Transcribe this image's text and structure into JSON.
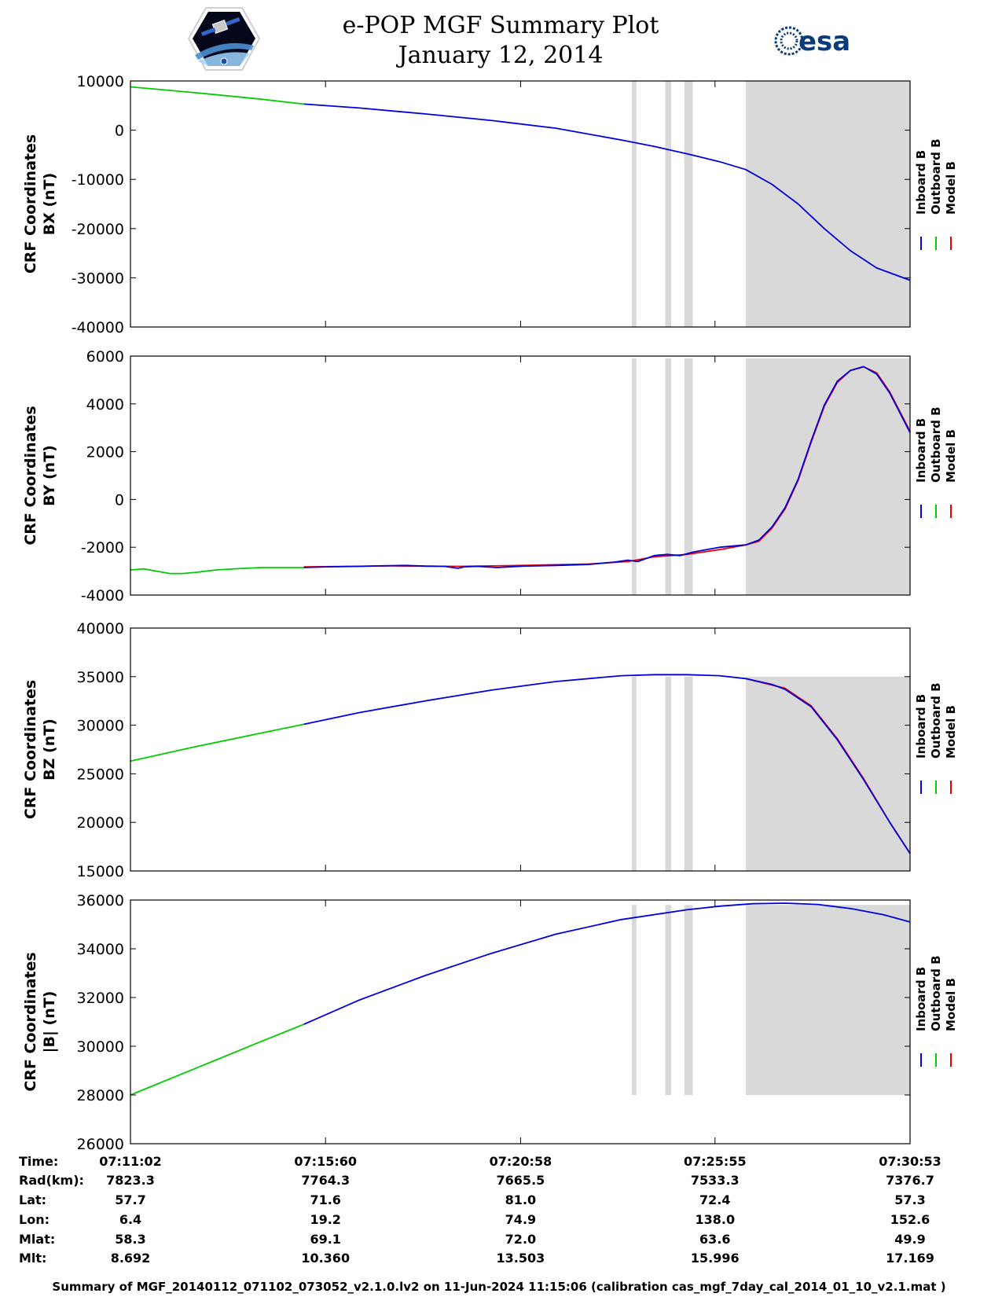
{
  "header": {
    "title": "e-POP MGF Summary Plot",
    "subtitle": "January 12, 2014",
    "esa_logo": "esa",
    "cassiope_logo": "CASSIOPE"
  },
  "colors": {
    "inboard": "#0000dd",
    "outboard": "#00cc00",
    "model": "#ee0000",
    "gap_shading": "#d9d9d9"
  },
  "legend": {
    "inboard": "Inboard B",
    "outboard": "Outboard B",
    "model": "Model B"
  },
  "time_axis": {
    "start": "07:11:02",
    "end": "07:30:53",
    "tick_labels": [
      "07:11:02",
      "07:15:60",
      "07:20:58",
      "07:25:55",
      "07:30:53"
    ],
    "tick_seconds": [
      0,
      298,
      596,
      893,
      1191
    ]
  },
  "gaps_seconds": [
    [
      766,
      773
    ],
    [
      817,
      826
    ],
    [
      846,
      859
    ],
    [
      940,
      1191
    ]
  ],
  "chart_data": [
    {
      "type": "line",
      "ylabel_line1": "CRF Coordinates",
      "ylabel_line2": "BX (nT)",
      "ylim": [
        -40000,
        10000
      ],
      "yticks": [
        10000,
        0,
        -10000,
        -20000,
        -30000,
        -40000
      ],
      "ytick_labels": [
        "10000",
        "0",
        "-10000",
        "-20000",
        "-30000",
        "-40000"
      ],
      "shade_top": 10000,
      "series": [
        {
          "name": "Outboard B",
          "color": "outboard",
          "x": [
            0,
            100,
            200,
            265
          ],
          "y": [
            8800,
            7600,
            6300,
            5300
          ]
        },
        {
          "name": "Inboard B",
          "color": "inboard",
          "x": [
            265,
            350,
            450,
            550,
            650,
            750,
            800,
            850,
            900,
            940,
            980,
            1020,
            1060,
            1100,
            1140,
            1191
          ],
          "y": [
            5300,
            4500,
            3300,
            2000,
            400,
            -2000,
            -3300,
            -4800,
            -6400,
            -8000,
            -11000,
            -15000,
            -20000,
            -24500,
            -28000,
            -30500
          ]
        }
      ]
    },
    {
      "type": "line",
      "ylabel_line1": "CRF Coordinates",
      "ylabel_line2": "BY (nT)",
      "ylim": [
        -4000,
        6000
      ],
      "yticks": [
        6000,
        4000,
        2000,
        0,
        -2000,
        -4000
      ],
      "ytick_labels": [
        "6000",
        "4000",
        "2000",
        "0",
        "-2000",
        "-4000"
      ],
      "shade_top": 5900,
      "series": [
        {
          "name": "Outboard B",
          "color": "outboard",
          "x": [
            0,
            20,
            40,
            60,
            80,
            100,
            130,
            160,
            200,
            265
          ],
          "y": [
            -2950,
            -2900,
            -3000,
            -3100,
            -3100,
            -3050,
            -2950,
            -2900,
            -2850,
            -2850
          ]
        },
        {
          "name": "Model B",
          "color": "model",
          "x": [
            265,
            400,
            500,
            600,
            700,
            760,
            800,
            850,
            900,
            940,
            960,
            980,
            1000,
            1020,
            1040,
            1060,
            1080,
            1100,
            1120,
            1140,
            1160,
            1191
          ],
          "y": [
            -2820,
            -2780,
            -2800,
            -2760,
            -2700,
            -2600,
            -2400,
            -2300,
            -2100,
            -1900,
            -1750,
            -1200,
            -400,
            800,
            2400,
            3900,
            4900,
            5400,
            5550,
            5300,
            4500,
            2850
          ]
        },
        {
          "name": "Inboard B",
          "color": "inboard",
          "x": [
            265,
            300,
            350,
            380,
            420,
            450,
            480,
            500,
            510,
            530,
            560,
            600,
            650,
            700,
            740,
            760,
            775,
            790,
            800,
            820,
            840,
            860,
            880,
            900,
            920,
            940,
            960,
            980,
            1000,
            1020,
            1040,
            1060,
            1080,
            1100,
            1120,
            1140,
            1160,
            1191
          ],
          "y": [
            -2850,
            -2820,
            -2800,
            -2780,
            -2760,
            -2790,
            -2800,
            -2880,
            -2820,
            -2800,
            -2850,
            -2790,
            -2760,
            -2720,
            -2620,
            -2540,
            -2600,
            -2450,
            -2350,
            -2300,
            -2350,
            -2200,
            -2100,
            -2000,
            -1950,
            -1900,
            -1700,
            -1150,
            -350,
            850,
            2450,
            3950,
            4950,
            5400,
            5560,
            5250,
            4450,
            2800
          ]
        }
      ]
    },
    {
      "type": "line",
      "ylabel_line1": "CRF Coordinates",
      "ylabel_line2": "BZ (nT)",
      "ylim": [
        15000,
        40000
      ],
      "yticks": [
        40000,
        35000,
        30000,
        25000,
        20000,
        15000
      ],
      "ytick_labels": [
        "40000",
        "35000",
        "30000",
        "25000",
        "20000",
        "15000"
      ],
      "shade_top": 35000,
      "series": [
        {
          "name": "Outboard B",
          "color": "outboard",
          "x": [
            0,
            100,
            200,
            265
          ],
          "y": [
            26300,
            27800,
            29200,
            30100
          ]
        },
        {
          "name": "Model B",
          "color": "model",
          "x": [
            940,
            1000,
            1040,
            1080,
            1120,
            1160,
            1191
          ],
          "y": [
            34800,
            33800,
            32000,
            28600,
            24500,
            20000,
            16800
          ]
        },
        {
          "name": "Inboard B",
          "color": "inboard",
          "x": [
            265,
            350,
            450,
            550,
            650,
            750,
            800,
            850,
            900,
            940,
            980,
            1000,
            1040,
            1080,
            1120,
            1160,
            1191
          ],
          "y": [
            30100,
            31300,
            32500,
            33600,
            34500,
            35100,
            35200,
            35200,
            35100,
            34800,
            34200,
            33700,
            31900,
            28500,
            24400,
            20000,
            16800
          ]
        }
      ]
    },
    {
      "type": "line",
      "ylabel_line1": "CRF Coordinates",
      "ylabel_line2": "|B| (nT)",
      "ylim": [
        26000,
        36000
      ],
      "yticks": [
        36000,
        34000,
        32000,
        30000,
        28000,
        26000
      ],
      "ytick_labels": [
        "36000",
        "34000",
        "32000",
        "30000",
        "28000",
        "26000"
      ],
      "shade_top": 35800,
      "shade_bottom": 28000,
      "series": [
        {
          "name": "Outboard B",
          "color": "outboard",
          "x": [
            0,
            100,
            200,
            265
          ],
          "y": [
            28000,
            29100,
            30200,
            30900
          ]
        },
        {
          "name": "Inboard B",
          "color": "inboard",
          "x": [
            265,
            350,
            450,
            550,
            650,
            750,
            850,
            900,
            950,
            1000,
            1050,
            1100,
            1150,
            1191
          ],
          "y": [
            30900,
            31900,
            32900,
            33800,
            34600,
            35200,
            35600,
            35750,
            35850,
            35870,
            35820,
            35650,
            35400,
            35100
          ]
        }
      ]
    }
  ],
  "info_table": {
    "row_labels": [
      "Time:",
      "Rad(km):",
      "Lat:",
      "Lon:",
      "Mlat:",
      "Mlt:"
    ],
    "columns": [
      [
        "07:11:02",
        "7823.3",
        "57.7",
        "6.4",
        "58.3",
        "8.692"
      ],
      [
        "07:15:60",
        "7764.3",
        "71.6",
        "19.2",
        "69.1",
        "10.360"
      ],
      [
        "07:20:58",
        "7665.5",
        "81.0",
        "74.9",
        "72.0",
        "13.503"
      ],
      [
        "07:25:55",
        "7533.3",
        "72.4",
        "138.0",
        "63.6",
        "15.996"
      ],
      [
        "07:30:53",
        "7376.7",
        "57.3",
        "152.6",
        "49.9",
        "17.169"
      ]
    ]
  },
  "footer": "Summary of MGF_20140112_071102_073052_v2.1.0.lv2 on 11-Jun-2024 11:15:06 (calibration cas_mgf_7day_cal_2014_01_10_v2.1.mat )"
}
